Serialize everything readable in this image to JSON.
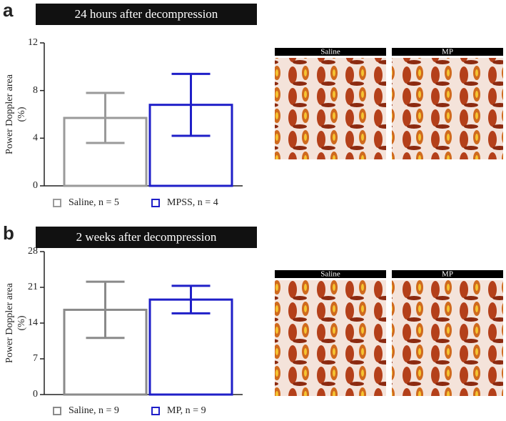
{
  "chart_data": [
    {
      "type": "bar",
      "panel": "a",
      "title": "24 hours after decompression",
      "ylabel": [
        "Power Doppler area",
        "(%)"
      ],
      "categories": [
        "Saline, n = 5",
        "MPSS, n = 4"
      ],
      "values": [
        5.7,
        6.8
      ],
      "errors": [
        2.1,
        2.6
      ],
      "colors": [
        "#9a9a9a",
        "#1f1fc8"
      ],
      "ylim": [
        0,
        12
      ],
      "yticks": [
        0,
        4,
        8,
        12
      ],
      "images": [
        "Saline",
        "MP"
      ]
    },
    {
      "type": "bar",
      "panel": "b",
      "title": "2 weeks after decompression",
      "ylabel": [
        "Power Doppler area",
        "(%)"
      ],
      "categories": [
        "Saline, n = 9",
        "MP, n = 9"
      ],
      "values": [
        16.6,
        18.6
      ],
      "errors": [
        5.5,
        2.7
      ],
      "colors": [
        "#8a8a8a",
        "#1f1fc8"
      ],
      "ylim": [
        0,
        28
      ],
      "yticks": [
        0,
        7,
        14,
        21,
        28
      ],
      "images": [
        "Saline",
        "MP"
      ]
    }
  ]
}
